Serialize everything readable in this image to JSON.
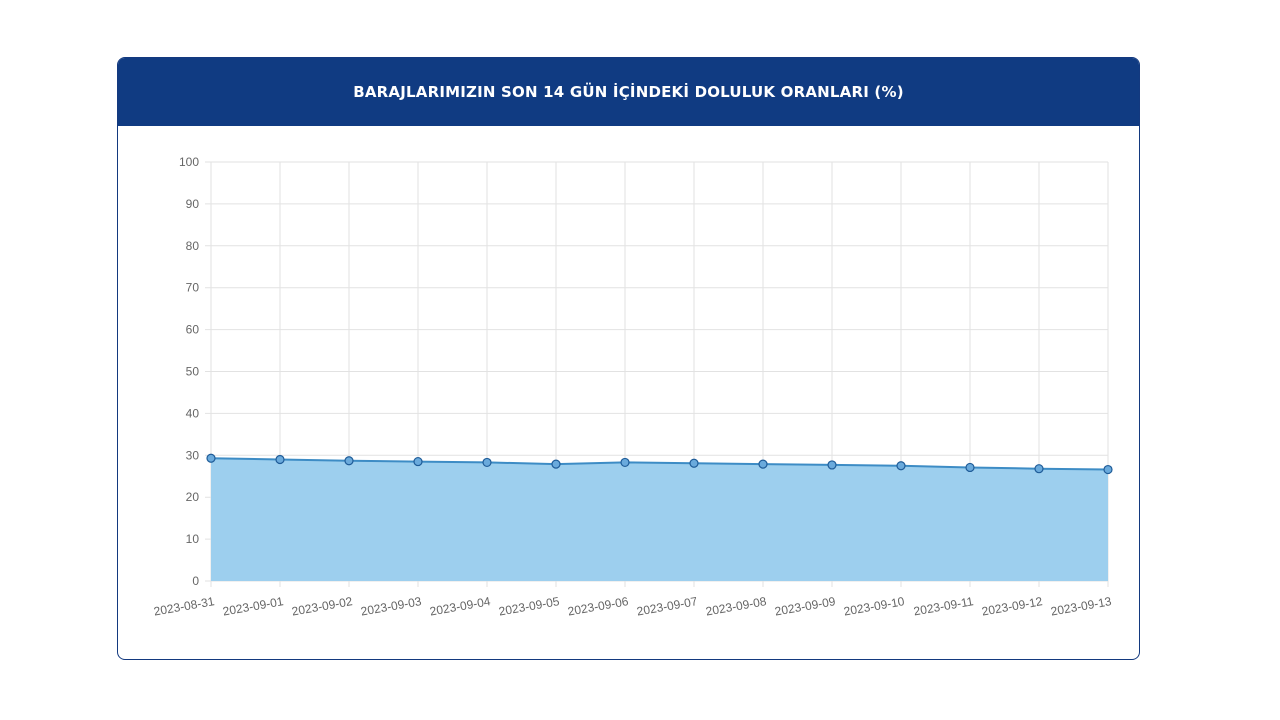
{
  "chart_data": {
    "type": "area",
    "title": "BARAJLARIMIZIN SON 14 GÜN İÇİNDEKİ DOLULUK ORANLARI (%)",
    "x": [
      "2023-08-31",
      "2023-09-01",
      "2023-09-02",
      "2023-09-03",
      "2023-09-04",
      "2023-09-05",
      "2023-09-06",
      "2023-09-07",
      "2023-09-08",
      "2023-09-09",
      "2023-09-10",
      "2023-09-11",
      "2023-09-12",
      "2023-09-13"
    ],
    "series": [
      {
        "values": [
          29.3,
          29.0,
          28.7,
          28.5,
          28.3,
          27.9,
          28.3,
          28.1,
          27.9,
          27.7,
          27.5,
          27.1,
          26.8,
          26.6
        ]
      }
    ],
    "yticks": [
      "0",
      "10",
      "20",
      "30",
      "40",
      "50",
      "60",
      "70",
      "80",
      "90",
      "100"
    ],
    "ylim": [
      0,
      100
    ],
    "xlabel": "",
    "ylabel": "",
    "grid": true,
    "legend": "none"
  },
  "colors": {
    "header_bg": "#103b82",
    "area_fill": "#9dcfee",
    "line": "#3d8cc5",
    "point_fill": "#6aaadc",
    "point_stroke": "#1f5c98",
    "grid": "#e2e2e2",
    "tick_text": "#666666"
  }
}
